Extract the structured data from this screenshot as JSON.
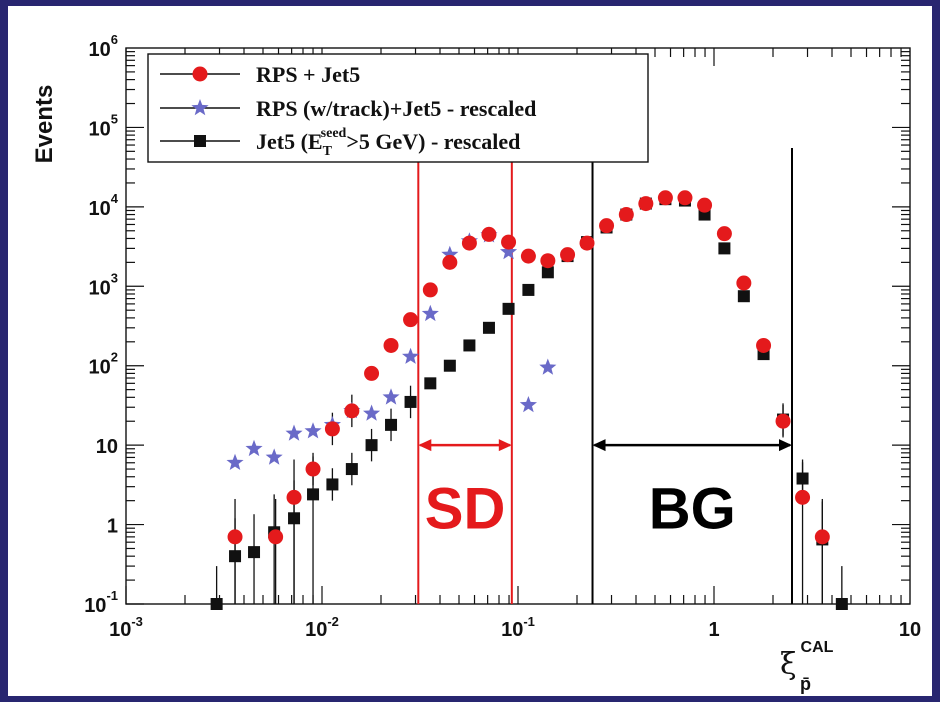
{
  "chart_data": {
    "type": "scatter",
    "title": "",
    "ylabel": "Events",
    "xlabel": {
      "base": "ξ",
      "sub": "p̄",
      "sup": "CAL"
    },
    "x_scale": "log",
    "y_scale": "log",
    "xlim": [
      0.001,
      10
    ],
    "ylim": [
      0.1,
      1000000
    ],
    "x_ticks": [
      {
        "value": 0.001,
        "base": "10",
        "exp": "-3"
      },
      {
        "value": 0.01,
        "base": "10",
        "exp": "-2"
      },
      {
        "value": 0.1,
        "base": "10",
        "exp": "-1"
      },
      {
        "value": 1,
        "base": "1",
        "exp": ""
      },
      {
        "value": 10,
        "base": "10",
        "exp": ""
      }
    ],
    "y_ticks": [
      {
        "value": 0.1,
        "base": "10",
        "exp": "-1"
      },
      {
        "value": 1,
        "base": "1",
        "exp": ""
      },
      {
        "value": 10,
        "base": "10",
        "exp": ""
      },
      {
        "value": 100,
        "base": "10",
        "exp": "2"
      },
      {
        "value": 1000,
        "base": "10",
        "exp": "3"
      },
      {
        "value": 10000,
        "base": "10",
        "exp": "4"
      },
      {
        "value": 100000,
        "base": "10",
        "exp": "5"
      },
      {
        "value": 1000000,
        "base": "10",
        "exp": "6"
      }
    ],
    "legend": {
      "placement": "top-left",
      "entries": [
        {
          "label": "RPS + Jet5",
          "marker": "circle",
          "color": "#e41a1c"
        },
        {
          "label": "RPS (w/track)+Jet5 - rescaled",
          "marker": "star",
          "color": "#6a6ac8"
        },
        {
          "label_parts": [
            "Jet5 (E",
            "T",
            "seed",
            ">5 GeV) - rescaled"
          ],
          "marker": "square",
          "color": "#111111"
        }
      ]
    },
    "series": [
      {
        "name": "RPS + Jet5",
        "marker": "circle",
        "color": "#e41a1c",
        "points": [
          {
            "x": 0.0036,
            "y": 0.7
          },
          {
            "x": 0.0058,
            "y": 0.7
          },
          {
            "x": 0.0072,
            "y": 2.2
          },
          {
            "x": 0.009,
            "y": 5
          },
          {
            "x": 0.0113,
            "y": 16
          },
          {
            "x": 0.0142,
            "y": 27
          },
          {
            "x": 0.0179,
            "y": 80
          },
          {
            "x": 0.0225,
            "y": 180
          },
          {
            "x": 0.0283,
            "y": 380
          },
          {
            "x": 0.0357,
            "y": 900
          },
          {
            "x": 0.0449,
            "y": 2000
          },
          {
            "x": 0.0565,
            "y": 3500
          },
          {
            "x": 0.0711,
            "y": 4500
          },
          {
            "x": 0.0895,
            "y": 3600
          },
          {
            "x": 0.113,
            "y": 2400
          },
          {
            "x": 0.142,
            "y": 2100
          },
          {
            "x": 0.179,
            "y": 2500
          },
          {
            "x": 0.225,
            "y": 3500
          },
          {
            "x": 0.283,
            "y": 5800
          },
          {
            "x": 0.357,
            "y": 8000
          },
          {
            "x": 0.449,
            "y": 11000
          },
          {
            "x": 0.565,
            "y": 13000
          },
          {
            "x": 0.711,
            "y": 13000
          },
          {
            "x": 0.895,
            "y": 10500
          },
          {
            "x": 1.13,
            "y": 4600
          },
          {
            "x": 1.42,
            "y": 1100
          },
          {
            "x": 1.79,
            "y": 180
          },
          {
            "x": 2.25,
            "y": 20
          },
          {
            "x": 2.83,
            "y": 2.2
          },
          {
            "x": 3.57,
            "y": 0.7
          }
        ]
      },
      {
        "name": "RPS (w/track)+Jet5 - rescaled",
        "marker": "star",
        "color": "#6a6ac8",
        "points": [
          {
            "x": 0.0036,
            "y": 6
          },
          {
            "x": 0.0045,
            "y": 9
          },
          {
            "x": 0.0057,
            "y": 7
          },
          {
            "x": 0.0072,
            "y": 14
          },
          {
            "x": 0.009,
            "y": 15
          },
          {
            "x": 0.0113,
            "y": 18
          },
          {
            "x": 0.0142,
            "y": 27
          },
          {
            "x": 0.0179,
            "y": 25
          },
          {
            "x": 0.0225,
            "y": 40
          },
          {
            "x": 0.0283,
            "y": 130
          },
          {
            "x": 0.0357,
            "y": 450
          },
          {
            "x": 0.0449,
            "y": 2500
          },
          {
            "x": 0.0565,
            "y": 3700
          },
          {
            "x": 0.0711,
            "y": 4400
          },
          {
            "x": 0.0895,
            "y": 2700
          },
          {
            "x": 0.113,
            "y": 32
          },
          {
            "x": 0.142,
            "y": 95
          }
        ]
      },
      {
        "name": "Jet5 (ET seed >5 GeV) - rescaled",
        "marker": "square",
        "color": "#111111",
        "points": [
          {
            "x": 0.0029,
            "y": 0.1
          },
          {
            "x": 0.0036,
            "y": 0.4
          },
          {
            "x": 0.0045,
            "y": 0.45
          },
          {
            "x": 0.0057,
            "y": 0.8
          },
          {
            "x": 0.0072,
            "y": 1.2
          },
          {
            "x": 0.009,
            "y": 2.4
          },
          {
            "x": 0.0113,
            "y": 3.2
          },
          {
            "x": 0.0142,
            "y": 5
          },
          {
            "x": 0.0179,
            "y": 10
          },
          {
            "x": 0.0225,
            "y": 18
          },
          {
            "x": 0.0283,
            "y": 35
          },
          {
            "x": 0.0357,
            "y": 60
          },
          {
            "x": 0.0449,
            "y": 100
          },
          {
            "x": 0.0565,
            "y": 180
          },
          {
            "x": 0.0711,
            "y": 300
          },
          {
            "x": 0.0895,
            "y": 520
          },
          {
            "x": 0.113,
            "y": 900
          },
          {
            "x": 0.142,
            "y": 1500
          },
          {
            "x": 0.179,
            "y": 2400
          },
          {
            "x": 0.225,
            "y": 3600
          },
          {
            "x": 0.283,
            "y": 5500
          },
          {
            "x": 0.357,
            "y": 8000
          },
          {
            "x": 0.449,
            "y": 11000
          },
          {
            "x": 0.565,
            "y": 12500
          },
          {
            "x": 0.711,
            "y": 12000
          },
          {
            "x": 0.895,
            "y": 8000
          },
          {
            "x": 1.13,
            "y": 3000
          },
          {
            "x": 1.42,
            "y": 750
          },
          {
            "x": 1.79,
            "y": 140
          },
          {
            "x": 2.25,
            "y": 21
          },
          {
            "x": 2.83,
            "y": 3.8
          },
          {
            "x": 3.57,
            "y": 0.65
          },
          {
            "x": 4.49,
            "y": 0.1
          }
        ]
      }
    ],
    "regions": [
      {
        "label": "SD",
        "x_from": 0.031,
        "x_to": 0.093,
        "arrow_y": 10,
        "label_y": 1.6,
        "color": "#e41a1c"
      },
      {
        "label": "BG",
        "x_from": 0.24,
        "x_to": 2.5,
        "arrow_y": 10,
        "label_y": 1.6,
        "color": "#000000"
      }
    ]
  }
}
